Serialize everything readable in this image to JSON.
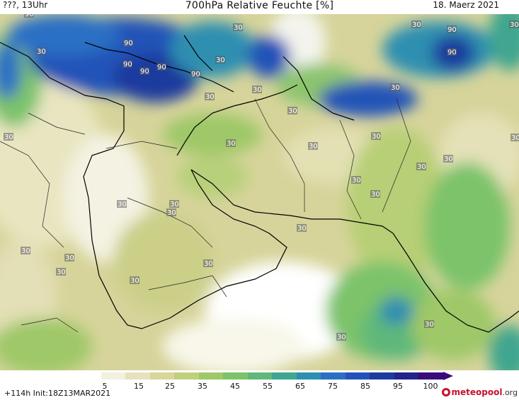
{
  "header": {
    "left": "???, 13Uhr",
    "title": "700hPa Relative Feuchte [%]",
    "right": "18. Maerz 2021"
  },
  "footer": {
    "run": "+114h Init:18Z13MAR2021",
    "logo_part1": "meteopool",
    "logo_part2": ".org"
  },
  "colorbar": {
    "ticks": [
      "5",
      "15",
      "25",
      "35",
      "45",
      "55",
      "65",
      "75",
      "85",
      "95",
      "100"
    ],
    "colors": [
      "#ffffff",
      "#f2f1de",
      "#e6e2bd",
      "#d8d69a",
      "#bfd07c",
      "#9fc868",
      "#7cc36a",
      "#5fb87a",
      "#3fa68f",
      "#2d8fb0",
      "#2a6fc4",
      "#2452b8",
      "#1e3a9e",
      "#23238a",
      "#3a0a7a"
    ]
  },
  "map_labels": [
    "90",
    "90",
    "90",
    "90",
    "90",
    "90",
    "90",
    "90",
    "30",
    "30",
    "30",
    "30",
    "30",
    "30",
    "30",
    "30",
    "30",
    "30",
    "30",
    "30",
    "30",
    "30",
    "30",
    "30",
    "30",
    "30",
    "30",
    "30",
    "30",
    "30",
    "30",
    "30",
    "30",
    "30",
    "30",
    "30",
    "30"
  ]
}
